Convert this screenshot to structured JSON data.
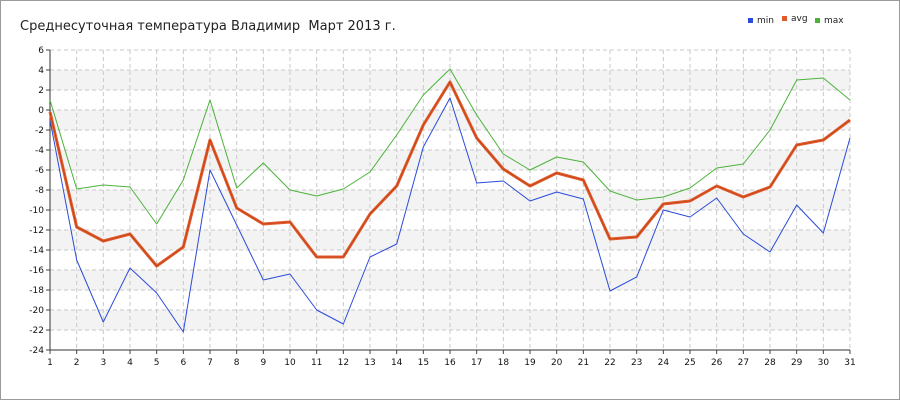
{
  "chart_data": {
    "type": "line",
    "title": "Среднесуточная температура Владимир  Март 2013 г.",
    "xlabel": "",
    "ylabel": "",
    "x": [
      1,
      2,
      3,
      4,
      5,
      6,
      7,
      8,
      9,
      10,
      11,
      12,
      13,
      14,
      15,
      16,
      17,
      18,
      19,
      20,
      21,
      22,
      23,
      24,
      25,
      26,
      27,
      28,
      29,
      30,
      31
    ],
    "ylim": [
      -24,
      6
    ],
    "yticks": [
      6,
      4,
      2,
      0,
      -2,
      -4,
      -6,
      -8,
      -10,
      -12,
      -14,
      -16,
      -18,
      -20,
      -22,
      -24
    ],
    "grid": true,
    "legend_position": "top-right",
    "series": [
      {
        "name": "min",
        "color": "#2b4bd9",
        "values": [
          -1,
          -15,
          -21.2,
          -15.8,
          -18.3,
          -22.2,
          -6,
          -11.5,
          -17,
          -16.4,
          -20,
          -21.4,
          -14.7,
          -13.4,
          -3.7,
          1.2,
          -7.3,
          -7.1,
          -9.1,
          -8.2,
          -8.9,
          -18.1,
          -16.7,
          -10,
          -10.7,
          -8.8,
          -12.4,
          -14.2,
          -9.5,
          -12.3,
          -2.8
        ]
      },
      {
        "name": "avg",
        "color": "#e05a2a",
        "values": [
          -0.2,
          -11.7,
          -13.1,
          -12.4,
          -15.6,
          -13.7,
          -3,
          -9.8,
          -11.4,
          -11.2,
          -14.7,
          -14.7,
          -10.4,
          -7.6,
          -1.5,
          2.8,
          -2.8,
          -5.9,
          -7.6,
          -6.3,
          -7,
          -12.9,
          -12.7,
          -9.4,
          -9.1,
          -7.6,
          -8.7,
          -7.7,
          -3.5,
          -3,
          -1
        ]
      },
      {
        "name": "max",
        "color": "#4bb33a",
        "values": [
          1,
          -7.9,
          -7.5,
          -7.7,
          -11.4,
          -7,
          1,
          -7.8,
          -5.3,
          -8,
          -8.6,
          -7.9,
          -6.2,
          -2.5,
          1.5,
          4.1,
          -0.5,
          -4.4,
          -6,
          -4.7,
          -5.2,
          -8.1,
          -9,
          -8.7,
          -7.8,
          -5.8,
          -5.4,
          -2,
          3,
          3.2,
          1
        ]
      }
    ]
  }
}
